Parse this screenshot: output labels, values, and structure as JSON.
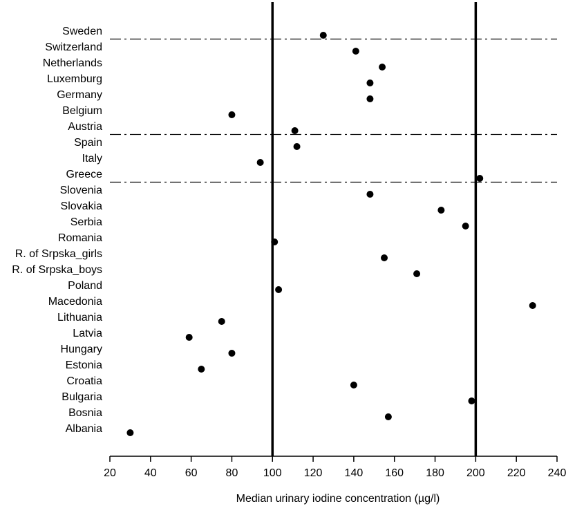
{
  "chart_data": {
    "type": "scatter",
    "xlabel": "Median urinary iodine concentration (µg/l)",
    "xlim": [
      20,
      240
    ],
    "xticks": [
      20,
      40,
      60,
      80,
      100,
      120,
      140,
      160,
      180,
      200,
      220,
      240
    ],
    "reference_lines_x": [
      100,
      200
    ],
    "group_separators_after": [
      "Sweden",
      "Austria",
      "Greece"
    ],
    "grid": false,
    "marker_color": "#000000",
    "points": [
      {
        "label": "Sweden",
        "value": 125
      },
      {
        "label": "Switzerland",
        "value": 141
      },
      {
        "label": "Netherlands",
        "value": 154
      },
      {
        "label": "Luxemburg",
        "value": 148
      },
      {
        "label": "Germany",
        "value": 148
      },
      {
        "label": "Belgium",
        "value": 80
      },
      {
        "label": "Austria",
        "value": 111
      },
      {
        "label": "Spain",
        "value": 112
      },
      {
        "label": "Italy",
        "value": 94
      },
      {
        "label": "Greece",
        "value": 202
      },
      {
        "label": "Slovenia",
        "value": 148
      },
      {
        "label": "Slovakia",
        "value": 183
      },
      {
        "label": "Serbia",
        "value": 195
      },
      {
        "label": "Romania",
        "value": 101
      },
      {
        "label": "R. of Srpska_girls",
        "value": 155
      },
      {
        "label": "R. of Srpska_boys",
        "value": 171
      },
      {
        "label": "Poland",
        "value": 103
      },
      {
        "label": "Macedonia",
        "value": 228
      },
      {
        "label": "Lithuania",
        "value": 75
      },
      {
        "label": "Latvia",
        "value": 59
      },
      {
        "label": "Hungary",
        "value": 80
      },
      {
        "label": "Estonia",
        "value": 65
      },
      {
        "label": "Croatia",
        "value": 140
      },
      {
        "label": "Bulgaria",
        "value": 198
      },
      {
        "label": "Bosnia",
        "value": 157
      },
      {
        "label": "Albania",
        "value": 30
      }
    ]
  }
}
